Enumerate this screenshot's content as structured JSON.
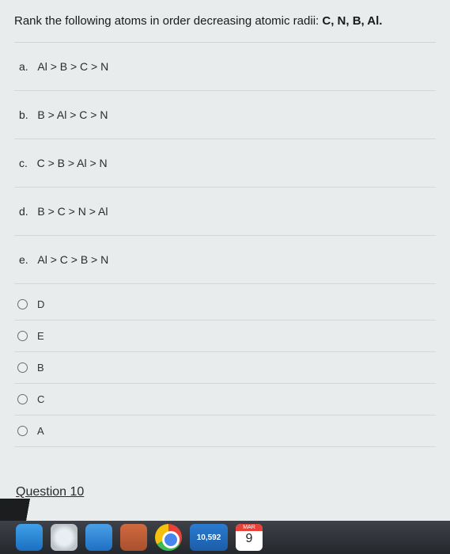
{
  "question": {
    "stem_prefix": "Rank the following atoms in order decreasing atomic radii:  ",
    "stem_bold": "C, N, B, Al.",
    "choices": [
      {
        "letter": "a.",
        "text": "Al > B > C > N"
      },
      {
        "letter": "b.",
        "text": "B > Al > C > N"
      },
      {
        "letter": "c.",
        "text": "C > B > Al > N"
      },
      {
        "letter": "d.",
        "text": "B > C > N  > Al"
      },
      {
        "letter": "e.",
        "text": "Al > C > B > N"
      }
    ],
    "answers": [
      "D",
      "E",
      "B",
      "C",
      "A"
    ]
  },
  "next_question_label": "Question 10",
  "dock": {
    "outlook_badge": "10,592",
    "calendar_month": "MAR",
    "calendar_day": "9"
  },
  "colors": {
    "page_bg": "#e9ecec",
    "body_bg": "#c8cccf",
    "divider": "#d4d7d7",
    "text": "#1a1a1a"
  }
}
